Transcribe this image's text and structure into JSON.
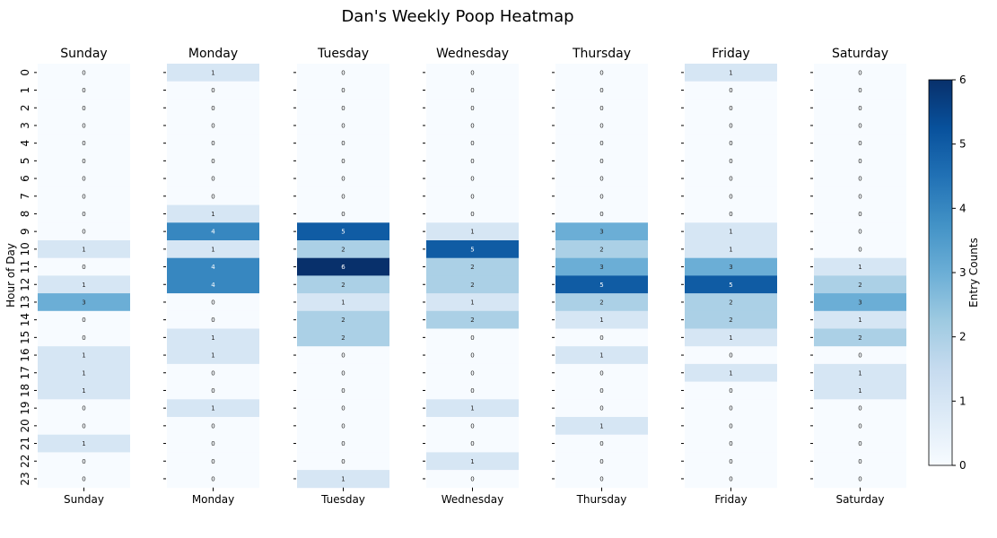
{
  "chart_data": {
    "type": "heatmap",
    "title": "Dan's Weekly Poop Heatmap",
    "ylabel": "Hour of Day",
    "colorbar_label": "Entry Counts",
    "colorbar_ticks": [
      "0",
      "1",
      "2",
      "3",
      "4",
      "5",
      "6"
    ],
    "vmin": 0,
    "vmax": 6,
    "colormap": "Blues",
    "hours": [
      "0",
      "1",
      "2",
      "3",
      "4",
      "5",
      "6",
      "7",
      "8",
      "9",
      "10",
      "11",
      "12",
      "13",
      "14",
      "15",
      "16",
      "17",
      "18",
      "19",
      "20",
      "21",
      "22",
      "23"
    ],
    "days": [
      {
        "name": "Sunday",
        "values": [
          0,
          0,
          0,
          0,
          0,
          0,
          0,
          0,
          0,
          0,
          1,
          0,
          1,
          3,
          0,
          0,
          1,
          1,
          1,
          0,
          0,
          1,
          0,
          0
        ]
      },
      {
        "name": "Monday",
        "values": [
          1,
          0,
          0,
          0,
          0,
          0,
          0,
          0,
          1,
          4,
          1,
          4,
          4,
          0,
          0,
          1,
          1,
          0,
          0,
          1,
          0,
          0,
          0,
          0
        ]
      },
      {
        "name": "Tuesday",
        "values": [
          0,
          0,
          0,
          0,
          0,
          0,
          0,
          0,
          0,
          5,
          2,
          6,
          2,
          1,
          2,
          2,
          0,
          0,
          0,
          0,
          0,
          0,
          0,
          1
        ]
      },
      {
        "name": "Wednesday",
        "values": [
          0,
          0,
          0,
          0,
          0,
          0,
          0,
          0,
          0,
          1,
          5,
          2,
          2,
          1,
          2,
          0,
          0,
          0,
          0,
          1,
          0,
          0,
          1,
          0
        ]
      },
      {
        "name": "Thursday",
        "values": [
          0,
          0,
          0,
          0,
          0,
          0,
          0,
          0,
          0,
          3,
          2,
          3,
          5,
          2,
          1,
          0,
          1,
          0,
          0,
          0,
          1,
          0,
          0,
          0
        ]
      },
      {
        "name": "Friday",
        "values": [
          1,
          0,
          0,
          0,
          0,
          0,
          0,
          0,
          0,
          1,
          1,
          3,
          5,
          2,
          2,
          1,
          0,
          1,
          0,
          0,
          0,
          0,
          0,
          0
        ]
      },
      {
        "name": "Saturday",
        "values": [
          0,
          0,
          0,
          0,
          0,
          0,
          0,
          0,
          0,
          0,
          0,
          1,
          2,
          3,
          1,
          2,
          0,
          1,
          1,
          0,
          0,
          0,
          0,
          0
        ]
      }
    ]
  }
}
